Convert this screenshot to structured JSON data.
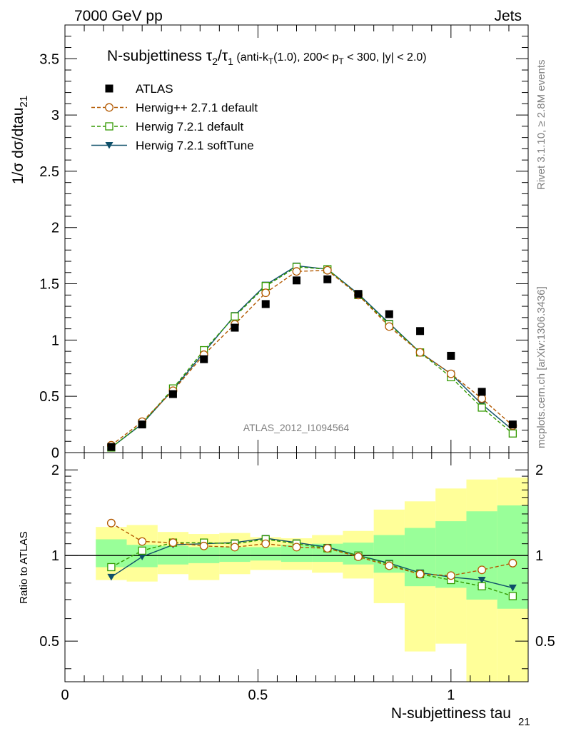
{
  "header": {
    "left": "7000 GeV pp",
    "right": "Jets"
  },
  "side": {
    "rivet": "Rivet 3.1.10, ≥ 2.8M events",
    "mcplots": "mcplots.cern.ch [arXiv:1306.3436]"
  },
  "watermark": "ATLAS_2012_I1094564",
  "chart_data": [
    {
      "type": "scatter",
      "title": "N-subjettiness τ₂/τ₁ (anti-k_T(1.0), 200< p_T < 300, |y| < 2.0)",
      "title_parts": {
        "main": "N-subjettiness ",
        "tau": "τ",
        "sub2": "2",
        "slash": "/",
        "sub1": "1",
        "rest1": " (anti-k",
        "subT1": "T",
        "rest2": "(1.0), 200< p",
        "subT2": "T",
        "rest3": " < 300, |y| < 2.0)"
      },
      "ylabel": "1/σ dσ/dtau",
      "ylabel_sub": "21",
      "xlim": [
        0,
        1.2
      ],
      "ylim": [
        0,
        3.8
      ],
      "yticks": [
        0,
        0.5,
        1,
        1.5,
        2,
        2.5,
        3,
        3.5
      ],
      "ytick_labels": [
        "0",
        "0.5",
        "1",
        "1.5",
        "2",
        "2.5",
        "3",
        "3.5"
      ],
      "legend_position": "top-left",
      "x": [
        0.12,
        0.2,
        0.28,
        0.36,
        0.44,
        0.52,
        0.6,
        0.68,
        0.76,
        0.84,
        0.92,
        1.0,
        1.08,
        1.16
      ],
      "series": [
        {
          "name": "ATLAS",
          "color": "#000000",
          "marker": "square-filled",
          "line": "none",
          "values": [
            0.05,
            0.25,
            0.52,
            0.83,
            1.11,
            1.32,
            1.53,
            1.54,
            1.41,
            1.23,
            1.08,
            0.86,
            0.54,
            0.25
          ]
        },
        {
          "name": "Herwig++ 2.7.1 default",
          "color": "#b35900",
          "marker": "circle-open",
          "line": "dashed",
          "values": [
            0.065,
            0.275,
            0.55,
            0.87,
            1.14,
            1.42,
            1.61,
            1.62,
            1.4,
            1.12,
            0.89,
            0.7,
            0.48,
            0.24
          ]
        },
        {
          "name": "Herwig 7.2.1 default",
          "color": "#339900",
          "marker": "square-open",
          "line": "dashed",
          "values": [
            0.045,
            0.26,
            0.57,
            0.91,
            1.21,
            1.48,
            1.65,
            1.63,
            1.4,
            1.14,
            0.89,
            0.67,
            0.4,
            0.17
          ]
        },
        {
          "name": "Herwig 7.2.1 softTune",
          "color": "#0e4f69",
          "marker": "triangle-down-filled",
          "line": "solid",
          "values": [
            0.045,
            0.255,
            0.56,
            0.89,
            1.22,
            1.49,
            1.66,
            1.63,
            1.41,
            1.15,
            0.89,
            0.7,
            0.43,
            0.2
          ]
        }
      ]
    },
    {
      "type": "line",
      "ylabel": "Ratio to ATLAS",
      "xlabel": "N-subjettiness tau",
      "xlabel_sub": "21",
      "xlim": [
        0,
        1.2
      ],
      "ylim": [
        0.36,
        2.3
      ],
      "yscale": "log",
      "yticks": [
        0.5,
        1,
        2
      ],
      "ytick_labels": [
        "0.5",
        "1",
        "2"
      ],
      "xticks": [
        0,
        0.5,
        1
      ],
      "xtick_labels": [
        "0",
        "0.5",
        "1"
      ],
      "reference_line": 1,
      "bin_edges": [
        0.08,
        0.16,
        0.24,
        0.32,
        0.4,
        0.48,
        0.56,
        0.64,
        0.72,
        0.8,
        0.88,
        0.96,
        1.04,
        1.12,
        1.2
      ],
      "band_inner": {
        "color": "#99ff99",
        "lo": [
          0.91,
          0.91,
          0.93,
          0.94,
          0.95,
          0.96,
          0.95,
          0.95,
          0.93,
          0.87,
          0.78,
          0.77,
          0.7,
          0.65
        ],
        "hi": [
          1.14,
          1.09,
          1.08,
          1.07,
          1.07,
          1.07,
          1.09,
          1.1,
          1.11,
          1.18,
          1.25,
          1.32,
          1.43,
          1.5
        ]
      },
      "band_outer": {
        "color": "#ffff99",
        "lo": [
          0.82,
          0.81,
          0.86,
          0.82,
          0.86,
          0.89,
          0.89,
          0.87,
          0.83,
          0.68,
          0.46,
          0.49,
          0.35,
          0.35
        ],
        "hi": [
          1.26,
          1.28,
          1.21,
          1.19,
          1.2,
          1.16,
          1.15,
          1.18,
          1.22,
          1.45,
          1.55,
          1.72,
          1.85,
          1.88
        ]
      },
      "x": [
        0.12,
        0.2,
        0.28,
        0.36,
        0.44,
        0.52,
        0.6,
        0.68,
        0.76,
        0.84,
        0.92,
        1.0,
        1.08,
        1.16
      ],
      "series": [
        {
          "name": "Herwig++ 2.7.1 default",
          "color": "#b35900",
          "marker": "circle-open",
          "line": "dashed",
          "values": [
            1.3,
            1.12,
            1.11,
            1.08,
            1.07,
            1.1,
            1.07,
            1.06,
            0.99,
            0.92,
            0.86,
            0.85,
            0.89,
            0.94
          ]
        },
        {
          "name": "Herwig 7.2.1 default",
          "color": "#339900",
          "marker": "square-open",
          "line": "dashed",
          "values": [
            0.91,
            1.04,
            1.11,
            1.11,
            1.1,
            1.14,
            1.1,
            1.06,
            1.0,
            0.93,
            0.86,
            0.82,
            0.78,
            0.72
          ]
        },
        {
          "name": "Herwig 7.2.1 softTune",
          "color": "#0e4f69",
          "marker": "triangle-down-filled",
          "line": "solid",
          "values": [
            0.84,
            0.99,
            1.09,
            1.1,
            1.11,
            1.15,
            1.11,
            1.07,
            1.0,
            0.94,
            0.87,
            0.84,
            0.82,
            0.77
          ]
        }
      ]
    }
  ]
}
